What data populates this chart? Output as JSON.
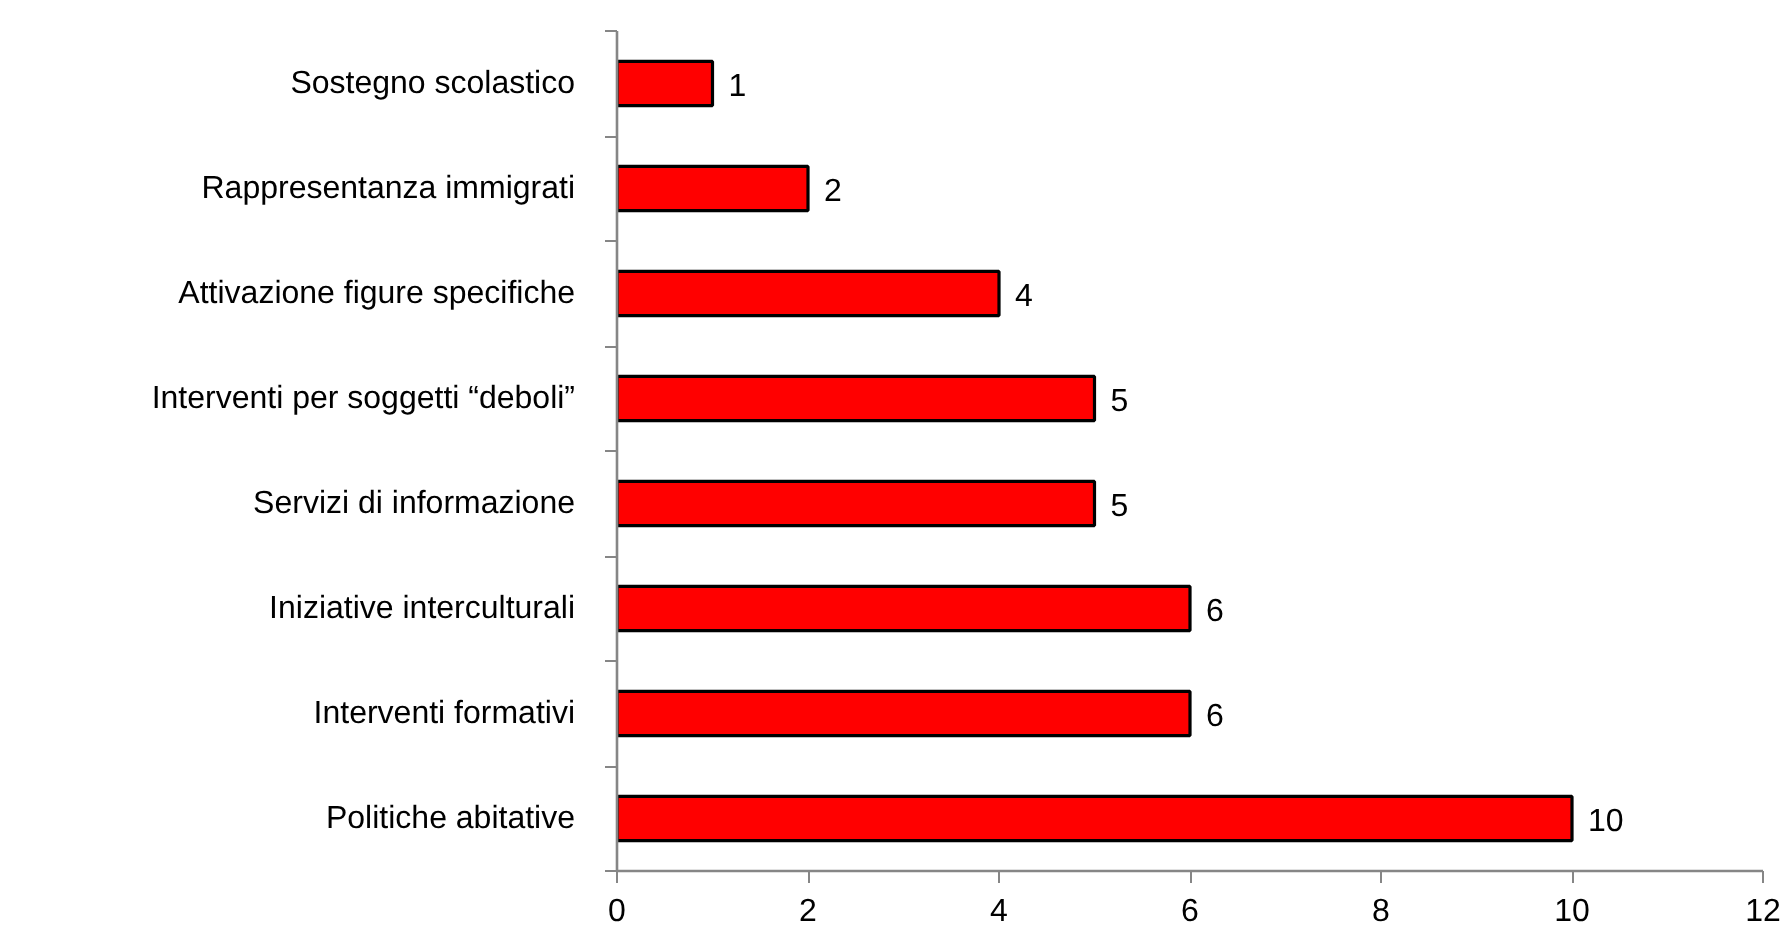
{
  "chart_data": {
    "type": "bar",
    "orientation": "horizontal",
    "categories": [
      "Sostegno scolastico",
      "Rappresentanza immigrati",
      "Attivazione figure specifiche",
      "Interventi per soggetti “deboli”",
      "Servizi di informazione",
      "Iniziative interculturali",
      "Interventi formativi",
      "Politiche abitative"
    ],
    "values": [
      1,
      2,
      4,
      5,
      5,
      6,
      6,
      10
    ],
    "color": "#ff0000",
    "xlim": [
      0,
      12
    ],
    "xticks": [
      0,
      2,
      4,
      6,
      8,
      10,
      12
    ],
    "data_labels": true
  }
}
